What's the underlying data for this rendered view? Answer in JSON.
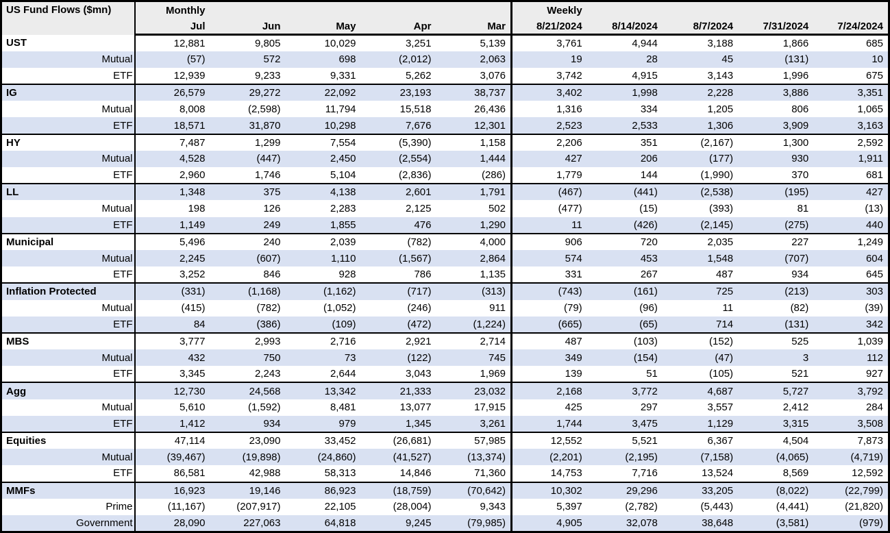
{
  "colors": {
    "band": "#D9E1F2",
    "header_bg": "#ECECEC",
    "border": "#000000",
    "text": "#000000"
  },
  "chart_data": {
    "type": "table",
    "title": "US Fund Flows ($mn)",
    "column_groups": [
      {
        "label": "Monthly",
        "columns": [
          "Jul",
          "Jun",
          "May",
          "Apr",
          "Mar"
        ]
      },
      {
        "label": "Weekly",
        "columns": [
          "8/21/2024",
          "8/14/2024",
          "8/7/2024",
          "7/31/2024",
          "7/24/2024"
        ]
      }
    ],
    "groups": [
      {
        "name": "UST",
        "rows": [
          {
            "label": "UST",
            "type": "total",
            "values": [
              "12,881",
              "9,805",
              "10,029",
              "3,251",
              "5,139",
              "3,761",
              "4,944",
              "3,188",
              "1,866",
              "685"
            ]
          },
          {
            "label": "Mutual",
            "type": "sub",
            "values": [
              "(57)",
              "572",
              "698",
              "(2,012)",
              "2,063",
              "19",
              "28",
              "45",
              "(131)",
              "10"
            ]
          },
          {
            "label": "ETF",
            "type": "sub",
            "values": [
              "12,939",
              "9,233",
              "9,331",
              "5,262",
              "3,076",
              "3,742",
              "4,915",
              "3,143",
              "1,996",
              "675"
            ]
          }
        ]
      },
      {
        "name": "IG",
        "rows": [
          {
            "label": "IG",
            "type": "total",
            "values": [
              "26,579",
              "29,272",
              "22,092",
              "23,193",
              "38,737",
              "3,402",
              "1,998",
              "2,228",
              "3,886",
              "3,351"
            ]
          },
          {
            "label": "Mutual",
            "type": "sub",
            "values": [
              "8,008",
              "(2,598)",
              "11,794",
              "15,518",
              "26,436",
              "1,316",
              "334",
              "1,205",
              "806",
              "1,065"
            ]
          },
          {
            "label": "ETF",
            "type": "sub",
            "values": [
              "18,571",
              "31,870",
              "10,298",
              "7,676",
              "12,301",
              "2,523",
              "2,533",
              "1,306",
              "3,909",
              "3,163"
            ]
          }
        ]
      },
      {
        "name": "HY",
        "rows": [
          {
            "label": "HY",
            "type": "total",
            "values": [
              "7,487",
              "1,299",
              "7,554",
              "(5,390)",
              "1,158",
              "2,206",
              "351",
              "(2,167)",
              "1,300",
              "2,592"
            ]
          },
          {
            "label": "Mutual",
            "type": "sub",
            "values": [
              "4,528",
              "(447)",
              "2,450",
              "(2,554)",
              "1,444",
              "427",
              "206",
              "(177)",
              "930",
              "1,911"
            ]
          },
          {
            "label": "ETF",
            "type": "sub",
            "values": [
              "2,960",
              "1,746",
              "5,104",
              "(2,836)",
              "(286)",
              "1,779",
              "144",
              "(1,990)",
              "370",
              "681"
            ]
          }
        ]
      },
      {
        "name": "LL",
        "rows": [
          {
            "label": "LL",
            "type": "total",
            "values": [
              "1,348",
              "375",
              "4,138",
              "2,601",
              "1,791",
              "(467)",
              "(441)",
              "(2,538)",
              "(195)",
              "427"
            ]
          },
          {
            "label": "Mutual",
            "type": "sub",
            "values": [
              "198",
              "126",
              "2,283",
              "2,125",
              "502",
              "(477)",
              "(15)",
              "(393)",
              "81",
              "(13)"
            ]
          },
          {
            "label": "ETF",
            "type": "sub",
            "values": [
              "1,149",
              "249",
              "1,855",
              "476",
              "1,290",
              "11",
              "(426)",
              "(2,145)",
              "(275)",
              "440"
            ]
          }
        ]
      },
      {
        "name": "Municipal",
        "rows": [
          {
            "label": "Municipal",
            "type": "total",
            "values": [
              "5,496",
              "240",
              "2,039",
              "(782)",
              "4,000",
              "906",
              "720",
              "2,035",
              "227",
              "1,249"
            ]
          },
          {
            "label": "Mutual",
            "type": "sub",
            "values": [
              "2,245",
              "(607)",
              "1,110",
              "(1,567)",
              "2,864",
              "574",
              "453",
              "1,548",
              "(707)",
              "604"
            ]
          },
          {
            "label": "ETF",
            "type": "sub",
            "values": [
              "3,252",
              "846",
              "928",
              "786",
              "1,135",
              "331",
              "267",
              "487",
              "934",
              "645"
            ]
          }
        ]
      },
      {
        "name": "Inflation Protected",
        "rows": [
          {
            "label": "Inflation Protected",
            "type": "total",
            "values": [
              "(331)",
              "(1,168)",
              "(1,162)",
              "(717)",
              "(313)",
              "(743)",
              "(161)",
              "725",
              "(213)",
              "303"
            ]
          },
          {
            "label": "Mutual",
            "type": "sub",
            "values": [
              "(415)",
              "(782)",
              "(1,052)",
              "(246)",
              "911",
              "(79)",
              "(96)",
              "11",
              "(82)",
              "(39)"
            ]
          },
          {
            "label": "ETF",
            "type": "sub",
            "values": [
              "84",
              "(386)",
              "(109)",
              "(472)",
              "(1,224)",
              "(665)",
              "(65)",
              "714",
              "(131)",
              "342"
            ]
          }
        ]
      },
      {
        "name": "MBS",
        "rows": [
          {
            "label": "MBS",
            "type": "total",
            "values": [
              "3,777",
              "2,993",
              "2,716",
              "2,921",
              "2,714",
              "487",
              "(103)",
              "(152)",
              "525",
              "1,039"
            ]
          },
          {
            "label": "Mutual",
            "type": "sub",
            "values": [
              "432",
              "750",
              "73",
              "(122)",
              "745",
              "349",
              "(154)",
              "(47)",
              "3",
              "112"
            ]
          },
          {
            "label": "ETF",
            "type": "sub",
            "values": [
              "3,345",
              "2,243",
              "2,644",
              "3,043",
              "1,969",
              "139",
              "51",
              "(105)",
              "521",
              "927"
            ]
          }
        ]
      },
      {
        "name": "Agg",
        "rows": [
          {
            "label": "Agg",
            "type": "total",
            "values": [
              "12,730",
              "24,568",
              "13,342",
              "21,333",
              "23,032",
              "2,168",
              "3,772",
              "4,687",
              "5,727",
              "3,792"
            ]
          },
          {
            "label": "Mutual",
            "type": "sub",
            "values": [
              "5,610",
              "(1,592)",
              "8,481",
              "13,077",
              "17,915",
              "425",
              "297",
              "3,557",
              "2,412",
              "284"
            ]
          },
          {
            "label": "ETF",
            "type": "sub",
            "values": [
              "1,412",
              "934",
              "979",
              "1,345",
              "3,261",
              "1,744",
              "3,475",
              "1,129",
              "3,315",
              "3,508"
            ]
          }
        ]
      },
      {
        "name": "Equities",
        "rows": [
          {
            "label": "Equities",
            "type": "total",
            "values": [
              "47,114",
              "23,090",
              "33,452",
              "(26,681)",
              "57,985",
              "12,552",
              "5,521",
              "6,367",
              "4,504",
              "7,873"
            ]
          },
          {
            "label": "Mutual",
            "type": "sub",
            "values": [
              "(39,467)",
              "(19,898)",
              "(24,860)",
              "(41,527)",
              "(13,374)",
              "(2,201)",
              "(2,195)",
              "(7,158)",
              "(4,065)",
              "(4,719)"
            ]
          },
          {
            "label": "ETF",
            "type": "sub",
            "values": [
              "86,581",
              "42,988",
              "58,313",
              "14,846",
              "71,360",
              "14,753",
              "7,716",
              "13,524",
              "8,569",
              "12,592"
            ]
          }
        ]
      },
      {
        "name": "MMFs",
        "rows": [
          {
            "label": "MMFs",
            "type": "total",
            "values": [
              "16,923",
              "19,146",
              "86,923",
              "(18,759)",
              "(70,642)",
              "10,302",
              "29,296",
              "33,205",
              "(8,022)",
              "(22,799)"
            ]
          },
          {
            "label": "Prime",
            "type": "sub",
            "values": [
              "(11,167)",
              "(207,917)",
              "22,105",
              "(28,004)",
              "9,343",
              "5,397",
              "(2,782)",
              "(5,443)",
              "(4,441)",
              "(21,820)"
            ]
          },
          {
            "label": "Government",
            "type": "sub",
            "values": [
              "28,090",
              "227,063",
              "64,818",
              "9,245",
              "(79,985)",
              "4,905",
              "32,078",
              "38,648",
              "(3,581)",
              "(979)"
            ]
          }
        ]
      }
    ]
  }
}
